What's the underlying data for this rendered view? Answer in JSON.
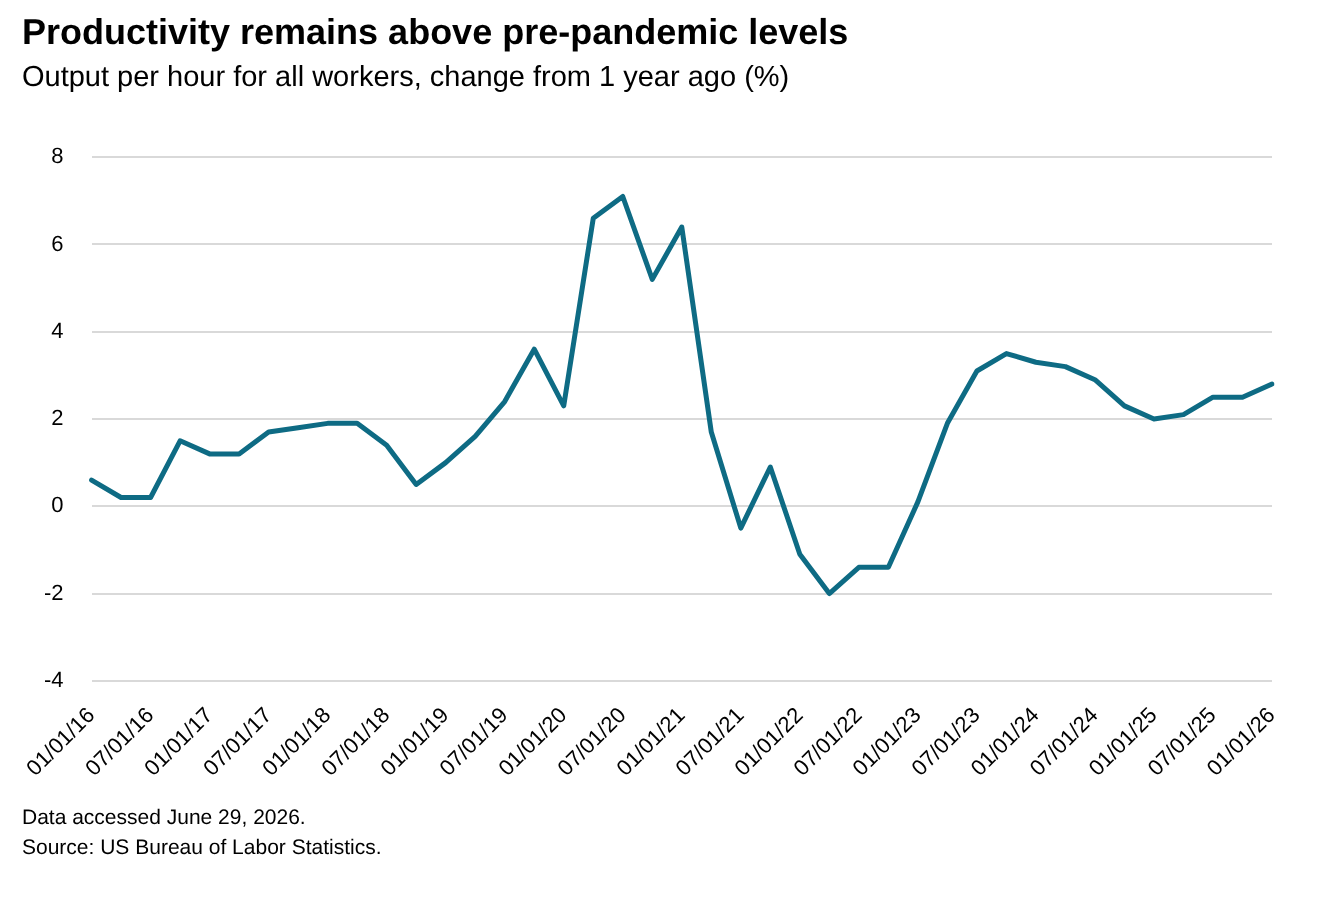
{
  "chart_data": {
    "type": "line",
    "title": "Productivity remains above pre-pandemic levels",
    "subtitle": "Output per hour for all workers, change from 1 year ago (%)",
    "categories": [
      "01/01/16",
      null,
      "07/01/16",
      null,
      "01/01/17",
      null,
      "07/01/17",
      null,
      "01/01/18",
      null,
      "07/01/18",
      null,
      "01/01/19",
      null,
      "07/01/19",
      null,
      "01/01/20",
      null,
      "07/01/20",
      null,
      "01/01/21",
      null,
      "07/01/21",
      null,
      "01/01/22",
      null,
      "07/01/22",
      null,
      "01/01/23",
      null,
      "07/01/23",
      null,
      "01/01/24",
      null,
      "07/01/24",
      null,
      "01/01/25",
      null,
      "07/01/25",
      null,
      "01/01/26"
    ],
    "series": [
      {
        "color": "#0e6b84",
        "values": [
          0.6,
          0.2,
          0.2,
          1.5,
          1.2,
          1.2,
          1.7,
          1.8,
          1.9,
          1.9,
          1.4,
          0.5,
          1.0,
          1.6,
          2.4,
          3.6,
          2.3,
          6.6,
          7.1,
          5.2,
          6.4,
          1.7,
          -0.5,
          0.9,
          -1.1,
          -2.0,
          -1.4,
          -1.4,
          0.1,
          1.9,
          3.1,
          3.5,
          3.3,
          3.2,
          2.9,
          2.3,
          2.0,
          2.1,
          2.5,
          2.5,
          2.8
        ]
      }
    ],
    "ylim": [
      -4,
      8
    ],
    "yticks": [
      -4,
      -2,
      0,
      2,
      4,
      6,
      8
    ],
    "grid": "y",
    "legend": false,
    "marker": "none",
    "line_style": "solid",
    "annotations": [
      "Data accessed June 29, 2026.",
      "Source: US Bureau of Labor Statistics."
    ]
  }
}
